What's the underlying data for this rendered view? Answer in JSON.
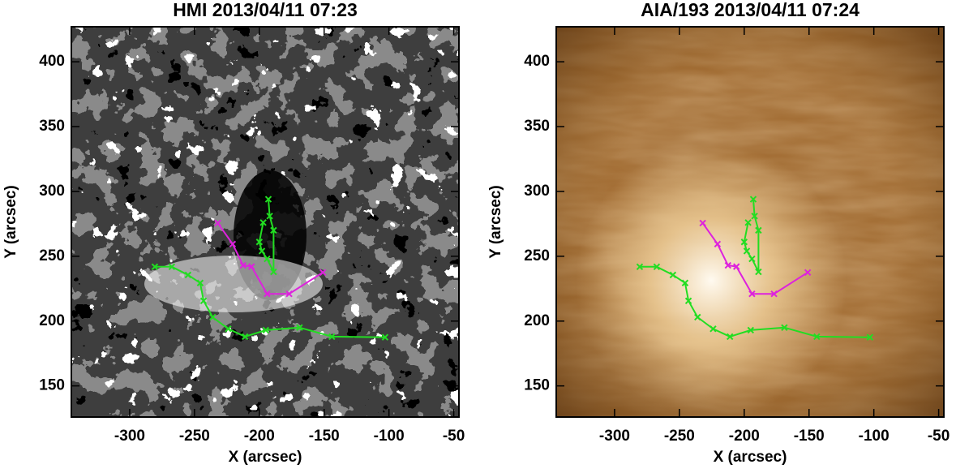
{
  "chart_data": [
    {
      "type": "line",
      "title": "HMI 2013/04/11 07:23",
      "xlabel": "X (arcsec)",
      "ylabel": "Y (arcsec)",
      "xlim": [
        -345,
        -46
      ],
      "ylim": [
        126,
        427
      ],
      "xticks": [
        -300,
        -250,
        -200,
        -150,
        -100,
        -50
      ],
      "yticks": [
        150,
        200,
        250,
        300,
        350,
        400
      ],
      "series": [
        {
          "color": "#22dd22",
          "x": [
            -280.6,
            -267.5,
            -255,
            -245.6,
            -243,
            -236,
            -224,
            -211,
            -195,
            -169,
            -144,
            -103
          ],
          "values": [
            241.9,
            241.9,
            235.6,
            229.4,
            215.6,
            203,
            194,
            188,
            193,
            195,
            188,
            187.5
          ]
        },
        {
          "color": "#dd22dd",
          "x": [
            -232,
            -220.6,
            -212.5,
            -206,
            -194,
            -177,
            -151
          ],
          "values": [
            275.6,
            259.4,
            243,
            242,
            221,
            221,
            237.5
          ]
        },
        {
          "color": "#22dd22",
          "x": [
            -197,
            -200,
            -198,
            -194,
            -189,
            -189,
            -192,
            -193
          ],
          "values": [
            276,
            261,
            254,
            248,
            238,
            270,
            281,
            294
          ]
        }
      ]
    },
    {
      "type": "line",
      "title": "AIA/193 2013/04/11 07:24",
      "xlabel": "X (arcsec)",
      "ylabel": "Y (arcsec)",
      "xlim": [
        -345,
        -46
      ],
      "ylim": [
        126,
        427
      ],
      "xticks": [
        -300,
        -250,
        -200,
        -150,
        -100,
        -50
      ],
      "yticks": [
        150,
        200,
        250,
        300,
        350,
        400
      ],
      "series": [
        {
          "color": "#22dd22",
          "x": [
            -280.6,
            -267.5,
            -255,
            -245.6,
            -243,
            -236,
            -224,
            -211,
            -195,
            -169,
            -144,
            -103
          ],
          "values": [
            241.9,
            241.9,
            235.6,
            229.4,
            215.6,
            203,
            194,
            188,
            193,
            195,
            188,
            187.5
          ]
        },
        {
          "color": "#dd22dd",
          "x": [
            -232,
            -220.6,
            -212.5,
            -206,
            -194,
            -177,
            -151
          ],
          "values": [
            275.6,
            259.4,
            243,
            242,
            221,
            221,
            237.5
          ]
        },
        {
          "color": "#22dd22",
          "x": [
            -197,
            -200,
            -198,
            -194,
            -189,
            -189,
            -192,
            -193
          ],
          "values": [
            276,
            261,
            254,
            248,
            238,
            270,
            281,
            294
          ]
        }
      ]
    }
  ]
}
